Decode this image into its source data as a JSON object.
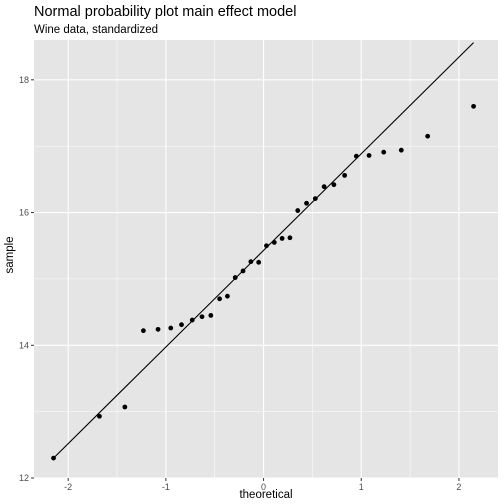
{
  "chart_data": {
    "type": "scatter",
    "title": "Normal probability plot main effect model",
    "subtitle": "Wine data, standardized",
    "xlabel": "theoretical",
    "ylabel": "sample",
    "xlim": [
      -2.35,
      2.4
    ],
    "ylim": [
      12.0,
      18.6
    ],
    "x_ticks": [
      -2,
      -1,
      0,
      1,
      2
    ],
    "x_tick_labels": [
      "-2",
      "-1",
      "0",
      "1",
      "2"
    ],
    "y_ticks": [
      12,
      14,
      16,
      18
    ],
    "y_tick_labels": [
      "12",
      "14",
      "16",
      "18"
    ],
    "grid": true,
    "background": "#e5e5e5",
    "gridline_color": "#ffffff",
    "point_color": "#000000",
    "line_color": "#000000",
    "reference_line": {
      "x": [
        -2.15,
        2.15
      ],
      "y": [
        12.3,
        18.56
      ]
    },
    "points": [
      {
        "x": -2.15,
        "y": 12.3
      },
      {
        "x": -1.68,
        "y": 12.93
      },
      {
        "x": -1.42,
        "y": 13.07
      },
      {
        "x": -1.23,
        "y": 14.22
      },
      {
        "x": -1.08,
        "y": 14.24
      },
      {
        "x": -0.95,
        "y": 14.26
      },
      {
        "x": -0.84,
        "y": 14.31
      },
      {
        "x": -0.73,
        "y": 14.38
      },
      {
        "x": -0.63,
        "y": 14.43
      },
      {
        "x": -0.54,
        "y": 14.45
      },
      {
        "x": -0.45,
        "y": 14.7
      },
      {
        "x": -0.37,
        "y": 14.74
      },
      {
        "x": -0.29,
        "y": 15.02
      },
      {
        "x": -0.21,
        "y": 15.12
      },
      {
        "x": -0.13,
        "y": 15.26
      },
      {
        "x": -0.05,
        "y": 15.25
      },
      {
        "x": 0.03,
        "y": 15.5
      },
      {
        "x": 0.11,
        "y": 15.55
      },
      {
        "x": 0.19,
        "y": 15.61
      },
      {
        "x": 0.27,
        "y": 15.62
      },
      {
        "x": 0.35,
        "y": 16.03
      },
      {
        "x": 0.44,
        "y": 16.14
      },
      {
        "x": 0.53,
        "y": 16.21
      },
      {
        "x": 0.62,
        "y": 16.39
      },
      {
        "x": 0.72,
        "y": 16.42
      },
      {
        "x": 0.83,
        "y": 16.56
      },
      {
        "x": 0.95,
        "y": 16.85
      },
      {
        "x": 1.08,
        "y": 16.86
      },
      {
        "x": 1.23,
        "y": 16.91
      },
      {
        "x": 1.41,
        "y": 16.94
      },
      {
        "x": 1.68,
        "y": 17.15
      },
      {
        "x": 2.15,
        "y": 17.6
      }
    ]
  }
}
